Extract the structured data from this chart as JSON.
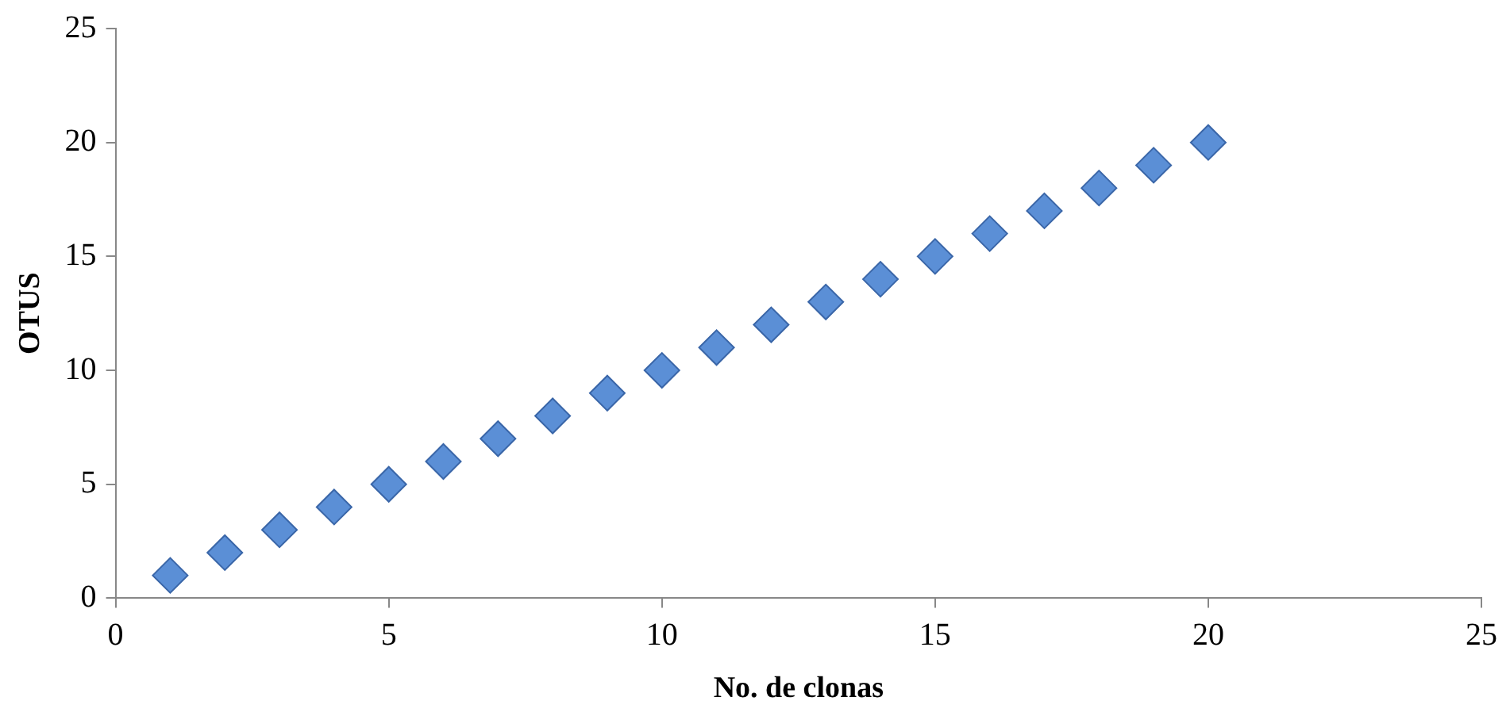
{
  "chart_data": {
    "type": "scatter",
    "xlabel": "No. de clonas",
    "ylabel": "OTUS",
    "x": [
      1,
      2,
      3,
      4,
      5,
      6,
      7,
      8,
      9,
      10,
      11,
      12,
      13,
      14,
      15,
      16,
      17,
      18,
      19,
      20
    ],
    "series": [
      {
        "color": "#5b8fd6",
        "values": [
          1,
          2,
          3,
          4,
          5,
          6,
          7,
          8,
          9,
          10,
          11,
          12,
          13,
          14,
          15,
          16,
          17,
          18,
          19,
          20
        ]
      }
    ],
    "xlim": [
      0,
      25
    ],
    "xticks": [
      0,
      5,
      10,
      15,
      20,
      25
    ],
    "ylim": [
      0,
      25
    ],
    "yticks": [
      0,
      5,
      10,
      15,
      20,
      25
    ],
    "grid": false,
    "legend": false,
    "marker": "diamond"
  }
}
